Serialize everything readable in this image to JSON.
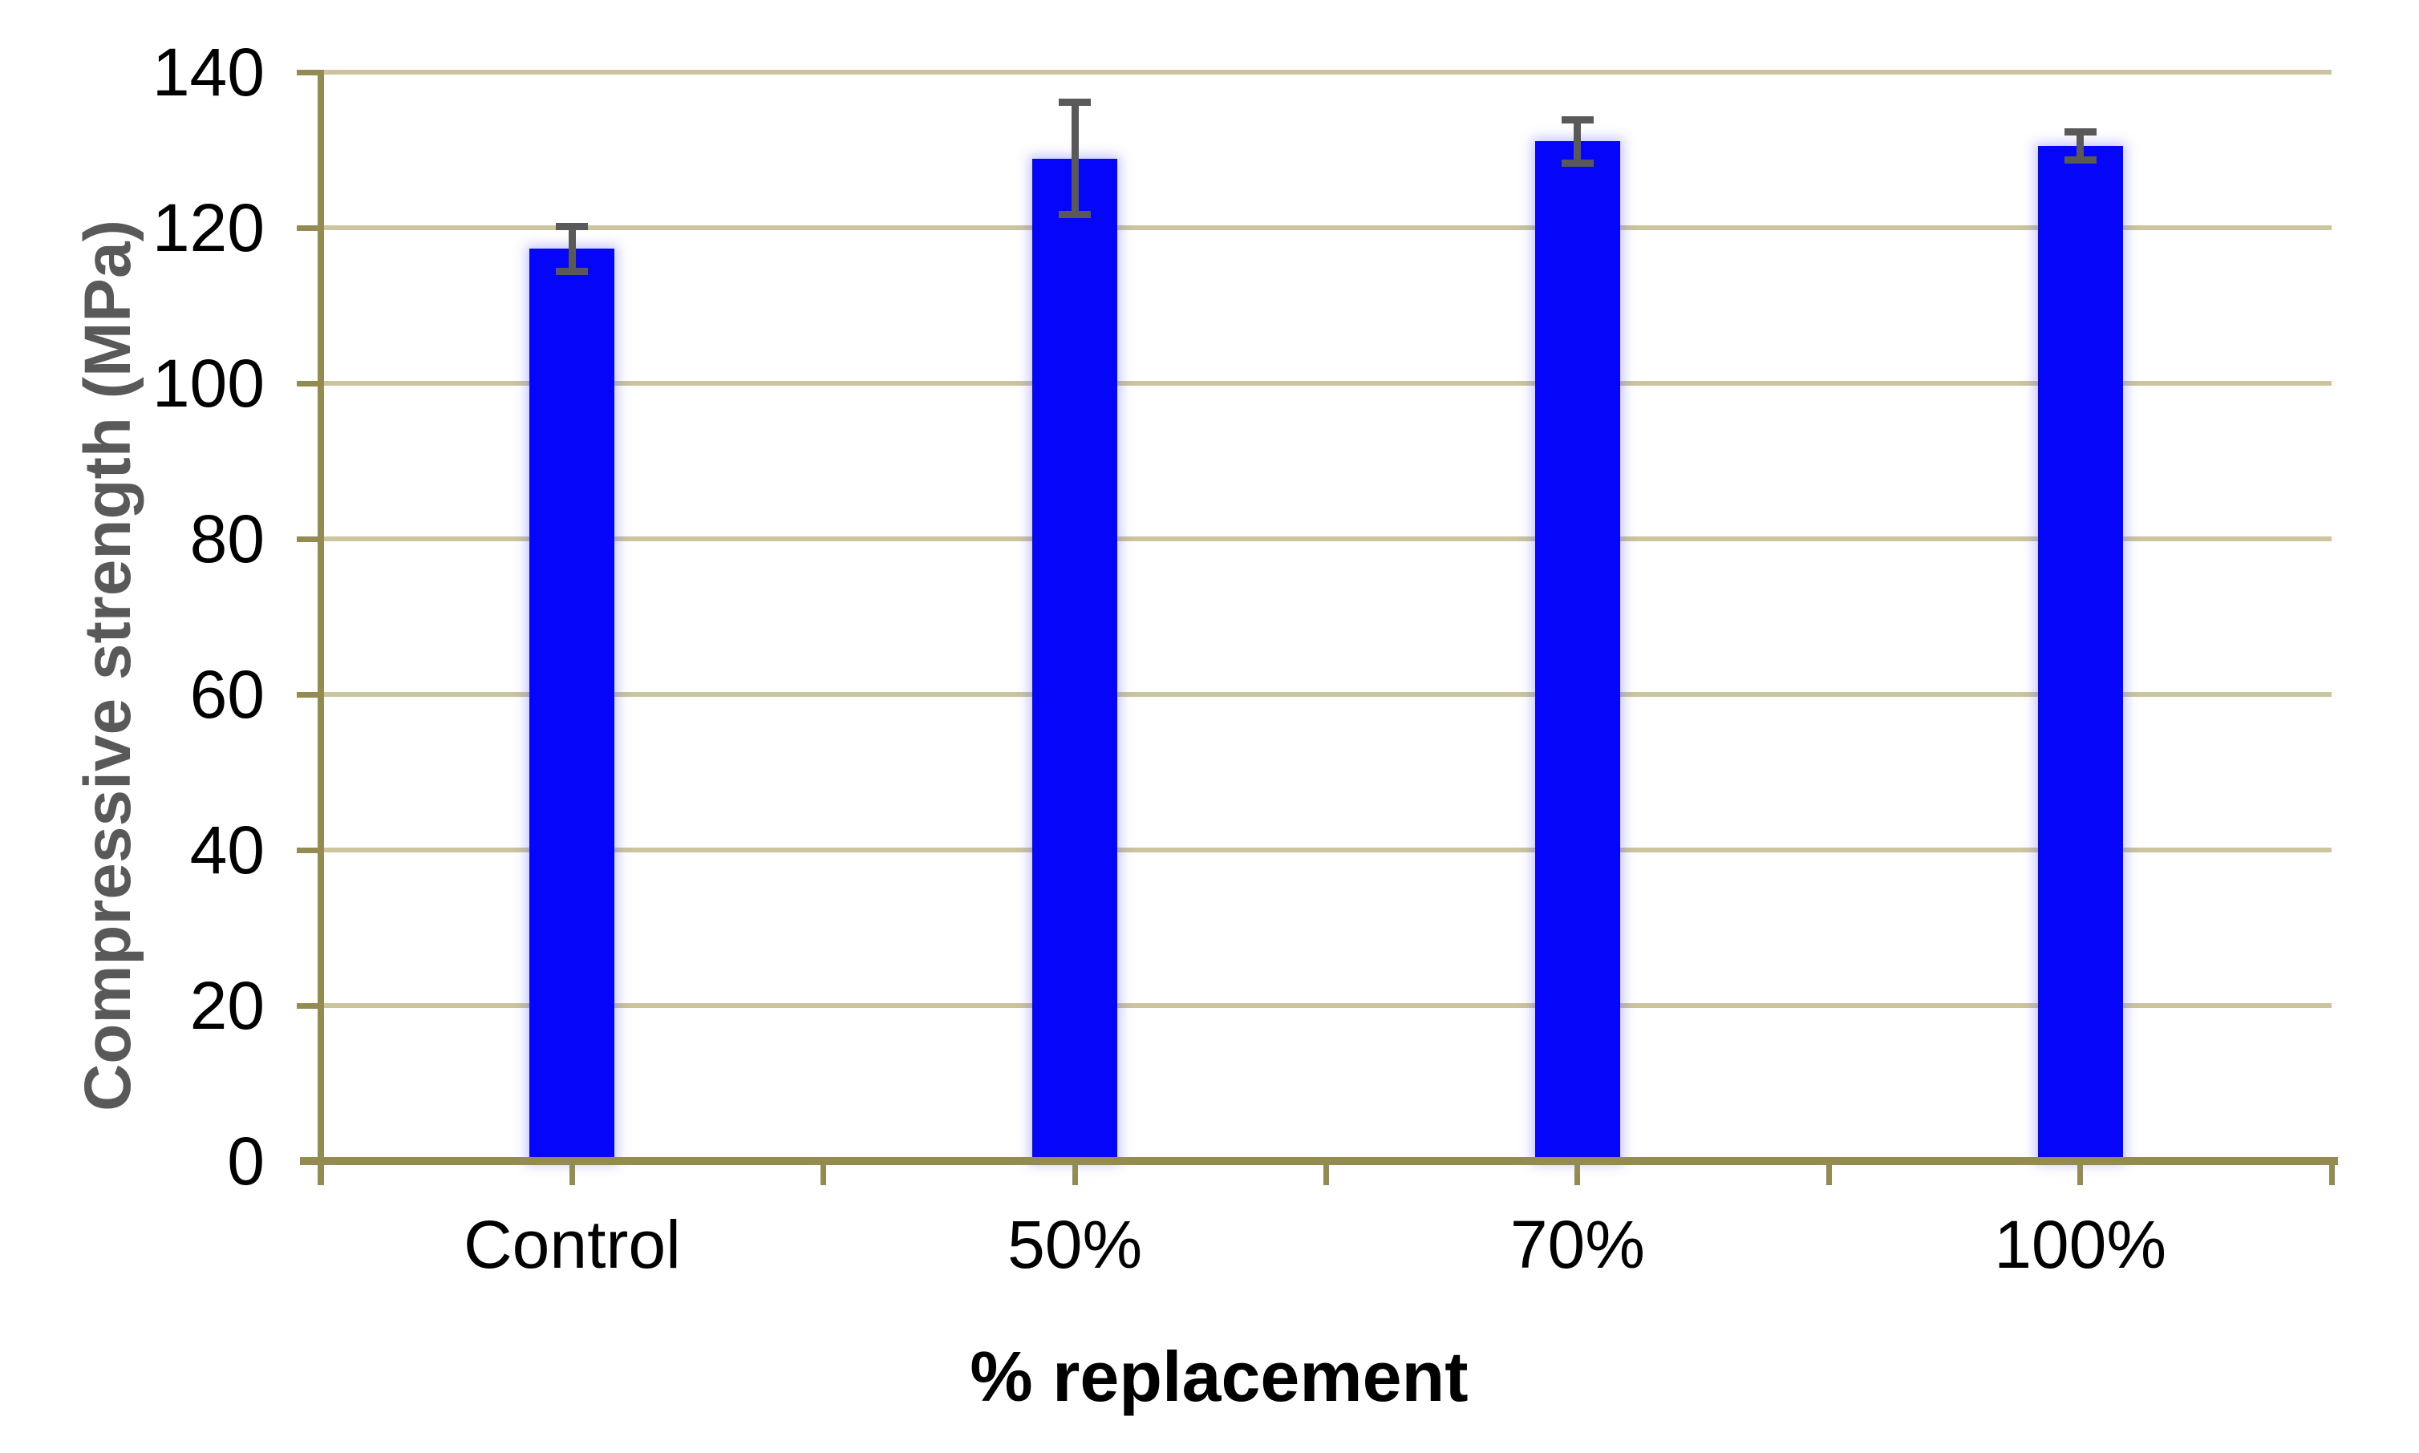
{
  "chart_data": {
    "type": "bar",
    "title": "",
    "xlabel": "% replacement",
    "ylabel": "Compressive strength (MPa)",
    "categories": [
      "Control",
      "50%",
      "70%",
      "100%"
    ],
    "values": [
      117.3,
      128.9,
      131.1,
      130.5
    ],
    "error_plus": [
      2.9,
      7.2,
      2.8,
      1.8
    ],
    "error_minus": [
      2.9,
      7.2,
      2.8,
      1.8
    ],
    "ylim": [
      0,
      140
    ],
    "yticks": [
      0,
      20,
      40,
      60,
      80,
      100,
      120,
      140
    ],
    "grid": "horizontal",
    "legend_position": "none",
    "x_ticks_per_category": 2,
    "colors": {
      "bar": "#0505fa",
      "error_bar": "#595959",
      "gridline": "#cbc49c",
      "axis": "#948b52",
      "tick_label": "#000000",
      "x_title": "#000000",
      "y_title": "#595959",
      "background": "#ffffff"
    }
  }
}
